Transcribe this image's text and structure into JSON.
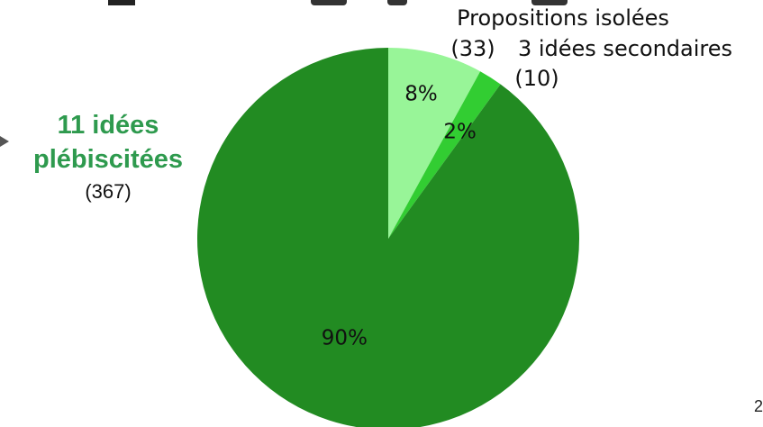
{
  "chart_data": {
    "type": "pie",
    "start_angle": "top",
    "direction": "clockwise",
    "slices": [
      {
        "label": "Propositions isolées",
        "count": "(33)",
        "value": 8,
        "pct_label": "8%",
        "color": "#98f598"
      },
      {
        "label": "3 idées secondaires",
        "count": "(10)",
        "value": 2,
        "pct_label": "2%",
        "color": "#32cd32"
      },
      {
        "label": "",
        "count": "",
        "value": 90,
        "pct_label": "90%",
        "color": "#228b22"
      }
    ]
  },
  "highlight": {
    "title_line1": "11 idées",
    "title_line2": "plébiscitées",
    "count": "(367)",
    "color": "#2e9a4e"
  },
  "page_number": "2"
}
